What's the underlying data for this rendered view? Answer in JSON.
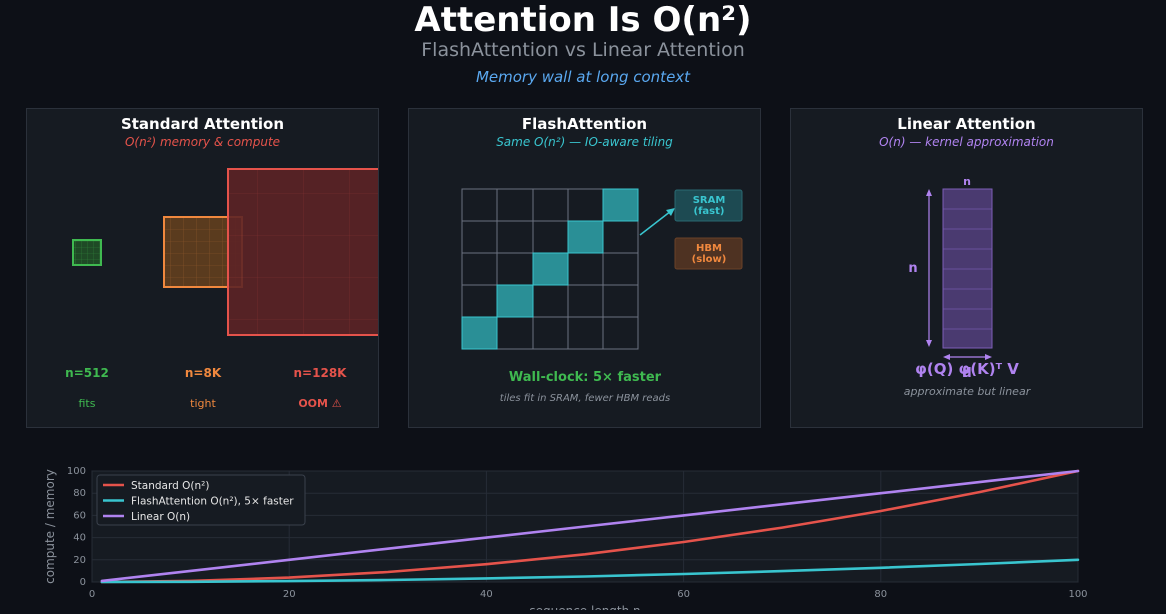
{
  "header": {
    "title": "Attention Is O(n²)",
    "subtitle": "FlashAttention vs Linear Attention",
    "tagline": "Memory wall at long context"
  },
  "colors": {
    "green": "#3fb950",
    "orange": "#f0883e",
    "red": "#e5534b",
    "cyan": "#39c5cf",
    "purple": "#b083f0",
    "blue": "#5aa8f0"
  },
  "panels": {
    "standard": {
      "title": "Standard Attention",
      "subtitle": "O(n²) memory & compute",
      "columns": [
        {
          "n": "n=512",
          "status": "fits"
        },
        {
          "n": "n=8K",
          "status": "tight"
        },
        {
          "n": "n=128K",
          "status": "OOM ⚠"
        }
      ]
    },
    "flash": {
      "title": "FlashAttention",
      "subtitle": "Same O(n²) — IO-aware tiling",
      "sram_line1": "SRAM",
      "sram_line2": "(fast)",
      "hbm_line1": "HBM",
      "hbm_line2": "(slow)",
      "result": "Wall-clock: 5× faster",
      "note": "tiles fit in SRAM, fewer HBM reads"
    },
    "linear": {
      "title": "Linear Attention",
      "subtitle": "O(n) — kernel approximation",
      "dim_top": "n",
      "dim_side": "n",
      "dim_bottom": "d",
      "formula": "φ(Q) φ(K)ᵀ V",
      "note": "approximate but linear"
    }
  },
  "chart_data": {
    "type": "line",
    "xlabel": "sequence length n",
    "ylabel": "compute / memory",
    "xlim": [
      0,
      100
    ],
    "ylim": [
      0,
      100
    ],
    "xticks": [
      0,
      20,
      40,
      60,
      80,
      100
    ],
    "yticks": [
      0,
      20,
      40,
      60,
      80,
      100
    ],
    "grid": true,
    "legend_position": "top-left",
    "x": [
      1,
      10,
      20,
      30,
      40,
      50,
      60,
      70,
      80,
      90,
      100
    ],
    "series": [
      {
        "name": "Standard O(n²)",
        "color": "#e5534b",
        "values": [
          0.01,
          1,
          4,
          9,
          16,
          25,
          36,
          49,
          64,
          81,
          100
        ]
      },
      {
        "name": "FlashAttention O(n²), 5× faster",
        "color": "#39c5cf",
        "values": [
          0.002,
          0.2,
          0.8,
          1.8,
          3.2,
          5,
          7.2,
          9.8,
          12.8,
          16.2,
          20
        ]
      },
      {
        "name": "Linear O(n)",
        "color": "#b083f0",
        "values": [
          1,
          10,
          20,
          30,
          40,
          50,
          60,
          70,
          80,
          90,
          100
        ]
      }
    ]
  }
}
